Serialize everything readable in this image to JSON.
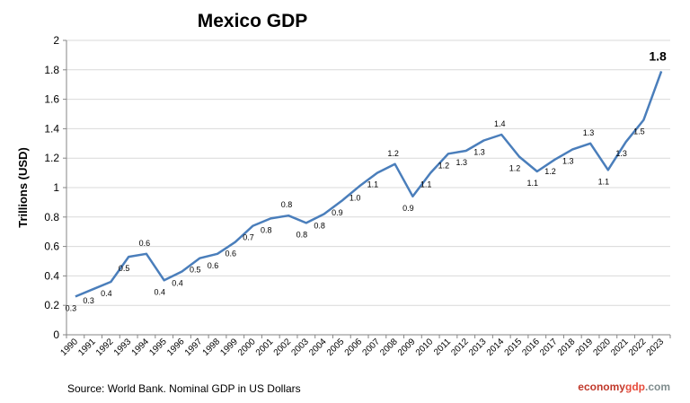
{
  "colors": {
    "line": "#4a7ebb",
    "grid": "#d9d9d9",
    "axis": "#868686"
  },
  "chart_data": {
    "type": "line",
    "title": "Mexico GDP",
    "ylabel": "Trillions (USD)",
    "xlabel": "",
    "ylim": [
      0,
      2
    ],
    "yticks": [
      "0",
      "0.2",
      "0.4",
      "0.6",
      "0.8",
      "1",
      "1.2",
      "1.4",
      "1.6",
      "1.8",
      "2"
    ],
    "grid": true,
    "categories": [
      "1990",
      "1991",
      "1992",
      "1993",
      "1994",
      "1995",
      "1996",
      "1997",
      "1998",
      "1999",
      "2000",
      "2001",
      "2002",
      "2003",
      "2004",
      "2005",
      "2006",
      "2007",
      "2008",
      "2009",
      "2010",
      "2011",
      "2012",
      "2013",
      "2014",
      "2015",
      "2016",
      "2017",
      "2018",
      "2019",
      "2020",
      "2021",
      "2022",
      "2023"
    ],
    "series": [
      {
        "values": [
          0.26,
          0.31,
          0.36,
          0.53,
          0.55,
          0.37,
          0.43,
          0.52,
          0.55,
          0.63,
          0.74,
          0.79,
          0.81,
          0.76,
          0.82,
          0.91,
          1.01,
          1.1,
          1.16,
          0.94,
          1.1,
          1.23,
          1.25,
          1.32,
          1.36,
          1.21,
          1.11,
          1.19,
          1.26,
          1.3,
          1.12,
          1.31,
          1.46,
          1.79
        ],
        "labels": [
          "0.3",
          "0.3",
          "0.4",
          "0.5",
          "0.6",
          "0.4",
          "0.4",
          "0.5",
          "0.6",
          "0.6",
          "0.7",
          "0.8",
          "0.8",
          "0.8",
          "0.8",
          "0.9",
          "1.0",
          "1.1",
          "1.2",
          "0.9",
          "1.1",
          "1.2",
          "1.3",
          "1.3",
          "1.4",
          "1.2",
          "1.1",
          "1.2",
          "1.3",
          "1.3",
          "1.1",
          "1.3",
          "1.5",
          "1.8"
        ]
      }
    ],
    "annotations": {
      "source": "Source: World Bank.  Nominal GDP  in US Dollars",
      "brand_part1": "economy",
      "brand_part2": "gdp",
      "brand_part3": ".com"
    }
  }
}
